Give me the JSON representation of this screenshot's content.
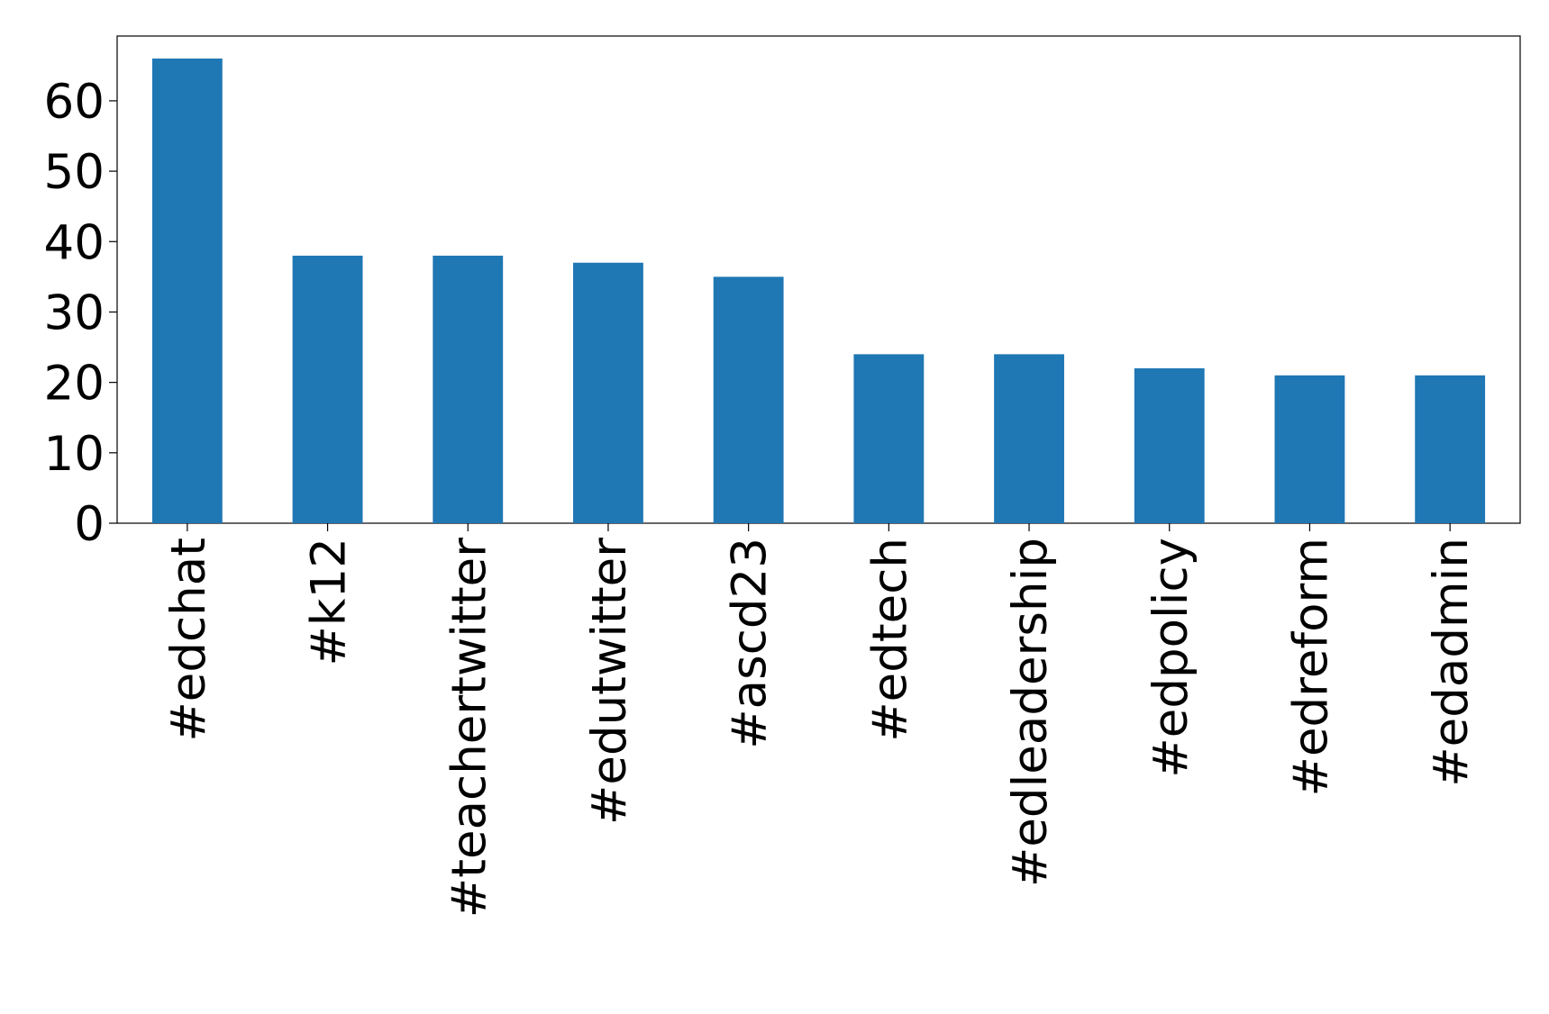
{
  "chart_data": {
    "type": "bar",
    "categories": [
      "#edchat",
      "#k12",
      "#teachertwitter",
      "#edutwitter",
      "#ascd23",
      "#edtech",
      "#edleadership",
      "#edpolicy",
      "#edreform",
      "#edadmin"
    ],
    "values": [
      66,
      38,
      38,
      37,
      35,
      24,
      24,
      22,
      21,
      21
    ],
    "color": "#1f77b4",
    "ylim": [
      0,
      69.2
    ],
    "yticks": [
      0,
      10,
      20,
      30,
      40,
      50,
      60
    ],
    "grid": false
  }
}
